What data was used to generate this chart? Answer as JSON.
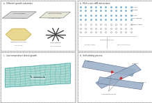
{
  "bg": "#ebebeb",
  "panel_bg": "#ffffff",
  "border_color": "#aaaaaa",
  "title_color": "#333333",
  "panel_titles": {
    "a": "a.  Different growth substrates",
    "b": "b.  Multi-scale vdW interactions",
    "c": "c.  Low-temperature lateral growth",
    "d": "d.  Self-welding process"
  },
  "light_teal": "#a0d4cc",
  "teal_line": "#4aaeaa",
  "blue_dot": "#7ab8d8",
  "blue_dot_edge": "#4a88b8",
  "parallelogram_color": "#d8d8d8",
  "flex_color": "#e8e8d8",
  "hex_color": "#e8d890",
  "hex_edge": "#c8a840",
  "strip_color": "#9ab0c8",
  "strip_edge": "#607090"
}
